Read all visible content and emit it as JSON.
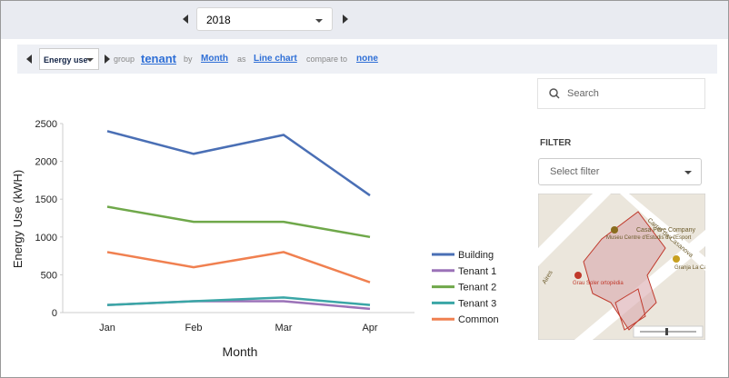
{
  "toolbar": {
    "year": "2018"
  },
  "query": {
    "metric": "Energy use",
    "group_label": "group",
    "group": "tenant",
    "by_label": "by",
    "by": "Month",
    "as_label": "as",
    "as": "Line chart",
    "compare_label": "compare to",
    "compare": "none"
  },
  "sidebar": {
    "search_placeholder": "Search",
    "filter_title": "FILTER",
    "filter_placeholder": "Select filter"
  },
  "map": {
    "labels": [
      "Carrer de Casanova",
      "Casa Pere Company",
      "Museu Centre d'Estudis de l'Esport",
      "Grau Soler ortopèdia",
      "Granja La Catalana",
      "Aires"
    ]
  },
  "chart_data": {
    "type": "line",
    "x_label": "Month",
    "y_label": "Energy Use (kWH)",
    "categories": [
      "Jan",
      "Feb",
      "Mar",
      "Apr"
    ],
    "series": [
      {
        "name": "Building",
        "color": "#4a6fb5",
        "values": [
          2400,
          2100,
          2350,
          1550
        ]
      },
      {
        "name": "Tenant 1",
        "color": "#9b72b8",
        "values": [
          100,
          150,
          150,
          50
        ]
      },
      {
        "name": "Tenant 2",
        "color": "#6fa84a",
        "values": [
          1400,
          1200,
          1200,
          1000
        ]
      },
      {
        "name": "Tenant 3",
        "color": "#3aa6a6",
        "values": [
          100,
          150,
          200,
          100
        ]
      },
      {
        "name": "Common",
        "color": "#f08050",
        "values": [
          800,
          600,
          800,
          400
        ]
      }
    ],
    "ylim": [
      0,
      2500
    ],
    "yticks": [
      0,
      500,
      1000,
      1500,
      2000,
      2500
    ],
    "grid": false,
    "legend": "right"
  }
}
